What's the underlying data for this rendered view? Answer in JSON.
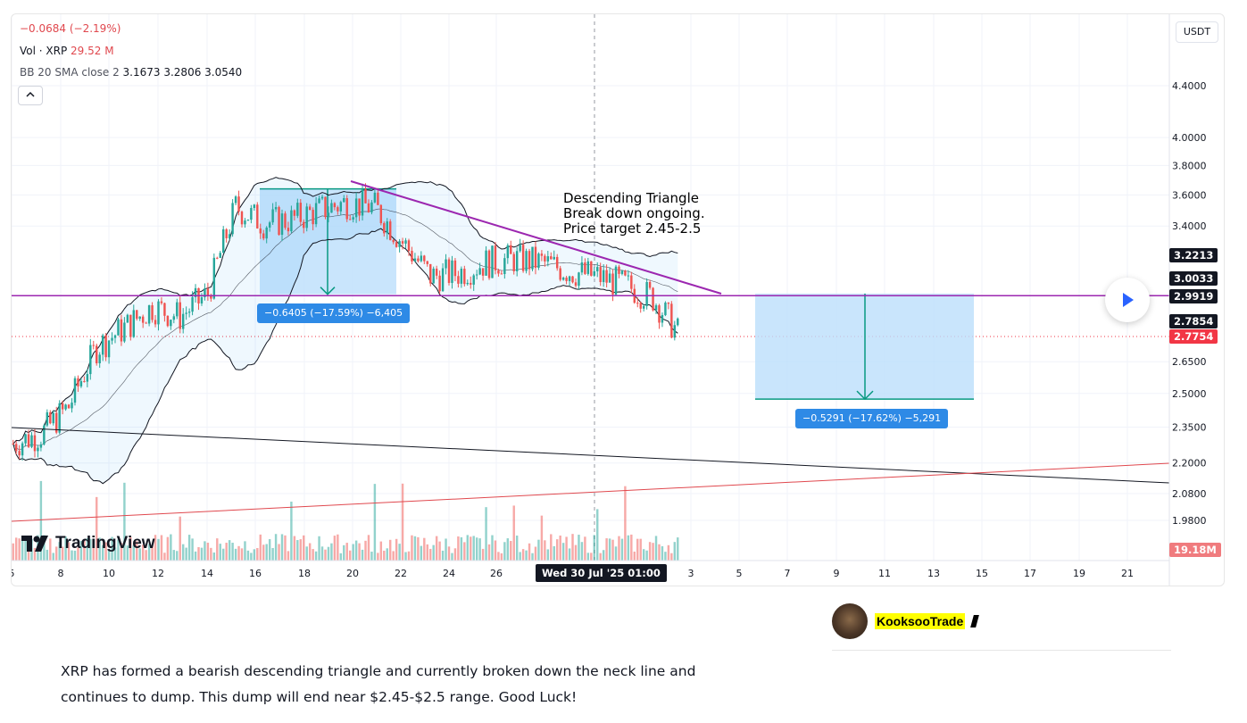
{
  "legend": {
    "change": "−0.0684 (−2.19%)",
    "vol_label": "Vol · XRP",
    "vol_value": "29.52 M",
    "bb_label": "BB 20 SMA close 2",
    "bb_values": "3.1673  3.2806  3.0540",
    "collapse_icon": "chevron-up-icon"
  },
  "currency": "USDT",
  "axis_tags": {
    "upper_band": "3.2213",
    "basis": "3.0033",
    "neckline": "2.9919",
    "lower_band": "2.7854",
    "last_price": "2.7754",
    "volume": "19.18M"
  },
  "time_badge": "Wed 30 Jul '25   01:00",
  "measures": {
    "left": "−0.6405 (−17.59%) −6,405",
    "right": "−0.5291 (−17.62%) −5,291"
  },
  "annotation": "Descending Triangle\nBreak down ongoing.\nPrice target 2.45-2.5",
  "logo": "TradingView",
  "author": "KooksooTrade",
  "description": "XRP has formed a bearish descending triangle and currently broken down the neck line and continues to dump. This dump will end near $2.45-$2.5 range. Good Luck!",
  "colors": {
    "bull": "#26a69a",
    "bear": "#ef5350",
    "triangle_line": "#9c27b0",
    "measure_box": "#bbdefb",
    "measure_label": "#2e8ae6",
    "last_price_tag": "#f23645"
  },
  "chart_data": {
    "type": "candlestick",
    "symbol": "XRP",
    "quote": "USDT",
    "y_scale": "log",
    "y_ticks": [
      4.4,
      4.0,
      3.8,
      3.6,
      3.4,
      3.2213,
      3.0033,
      2.9919,
      2.7854,
      2.7754,
      2.65,
      2.5,
      2.35,
      2.2,
      2.08,
      1.98
    ],
    "y_tick_labels": [
      "4.4000",
      "4.0000",
      "3.8000",
      "3.6000",
      "3.4000",
      "3.2213",
      "3.0033",
      "2.9919",
      "2.7854",
      "2.7754",
      "2.6500",
      "2.5000",
      "2.3500",
      "2.2000",
      "2.0800",
      "1.9800"
    ],
    "x_tick_labels": [
      "5",
      "8",
      "10",
      "12",
      "14",
      "16",
      "18",
      "20",
      "22",
      "24",
      "26",
      "Wed 30 Jul '25 01:00",
      "3",
      "5",
      "7",
      "9",
      "11",
      "13",
      "15",
      "17",
      "19",
      "21"
    ],
    "approx_daily_closes": {
      "dates": [
        "Jul 5",
        "Jul 8",
        "Jul 10",
        "Jul 11",
        "Jul 12",
        "Jul 14",
        "Jul 15",
        "Jul 16",
        "Jul 17",
        "Jul 18",
        "Jul 19",
        "Jul 20",
        "Jul 21",
        "Jul 22",
        "Jul 23",
        "Jul 24",
        "Jul 25",
        "Jul 26",
        "Jul 27",
        "Jul 28",
        "Jul 29",
        "Jul 30",
        "Jul 31",
        "Aug 1",
        "Aug 2"
      ],
      "close": [
        2.28,
        2.32,
        2.44,
        2.72,
        2.82,
        2.93,
        2.88,
        3.0,
        3.52,
        3.42,
        3.44,
        3.5,
        3.55,
        3.52,
        3.3,
        3.1,
        3.12,
        3.18,
        3.2,
        3.18,
        3.13,
        3.1,
        3.05,
        2.98,
        2.7754
      ]
    },
    "bollinger_bands": {
      "period": 20,
      "source": "close",
      "stdev": 2,
      "basis": 3.1673,
      "upper": 3.2806,
      "lower": 3.054
    },
    "neckline": 2.9919,
    "measure_left": {
      "from": 3.64,
      "to": 2.9995,
      "change": -0.6405,
      "pct": -17.59
    },
    "measure_right": {
      "from": 3.0033,
      "to": 2.4742,
      "change": -0.5291,
      "pct": -17.62,
      "target_range": "2.45-2.5"
    },
    "volume_last": "19.18M"
  }
}
